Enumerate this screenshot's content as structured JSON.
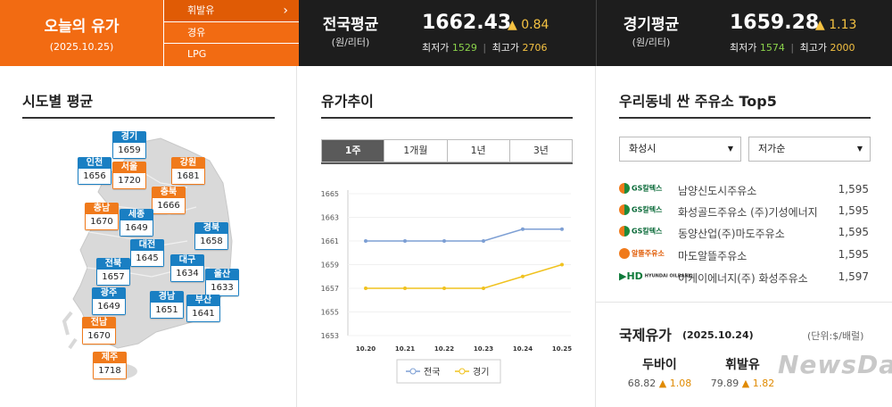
{
  "header": {
    "today": {
      "title": "오늘의 유가",
      "date": "(2025.10.25)"
    },
    "fuel_menu": [
      {
        "label": "휘발유",
        "active": true
      },
      {
        "label": "경유",
        "active": false
      },
      {
        "label": "LPG",
        "active": false
      }
    ],
    "national": {
      "name": "전국평균",
      "unit": "(원/리터)",
      "price": "1662.43",
      "delta": "▲ 0.84",
      "min_label": "최저가",
      "min": "1529",
      "max_label": "최고가",
      "max": "2706"
    },
    "gyeonggi": {
      "name": "경기평균",
      "unit": "(원/리터)",
      "price": "1659.28",
      "delta": "▲ 1.13",
      "min_label": "최저가",
      "min": "1574",
      "max_label": "최고가",
      "max": "2000"
    }
  },
  "regions_section": {
    "title": "시도별 평균",
    "regions": [
      {
        "name": "경기",
        "value": "1659",
        "color": "blue"
      },
      {
        "name": "인천",
        "value": "1656",
        "color": "blue"
      },
      {
        "name": "서울",
        "value": "1720",
        "color": "orange"
      },
      {
        "name": "강원",
        "value": "1681",
        "color": "orange"
      },
      {
        "name": "충북",
        "value": "1666",
        "color": "orange"
      },
      {
        "name": "충남",
        "value": "1670",
        "color": "orange"
      },
      {
        "name": "세종",
        "value": "1649",
        "color": "blue"
      },
      {
        "name": "경북",
        "value": "1658",
        "color": "blue"
      },
      {
        "name": "대전",
        "value": "1645",
        "color": "blue"
      },
      {
        "name": "전북",
        "value": "1657",
        "color": "blue"
      },
      {
        "name": "대구",
        "value": "1634",
        "color": "blue"
      },
      {
        "name": "울산",
        "value": "1633",
        "color": "blue"
      },
      {
        "name": "광주",
        "value": "1649",
        "color": "blue"
      },
      {
        "name": "경남",
        "value": "1651",
        "color": "blue"
      },
      {
        "name": "부산",
        "value": "1641",
        "color": "blue"
      },
      {
        "name": "전남",
        "value": "1670",
        "color": "orange"
      },
      {
        "name": "제주",
        "value": "1718",
        "color": "orange"
      }
    ]
  },
  "trend_section": {
    "title": "유가추이",
    "tabs": [
      {
        "label": "1주",
        "active": true
      },
      {
        "label": "1개월",
        "active": false
      },
      {
        "label": "1년",
        "active": false
      },
      {
        "label": "3년",
        "active": false
      }
    ]
  },
  "chart_data": {
    "type": "line",
    "x": [
      "10.20",
      "10.21",
      "10.22",
      "10.23",
      "10.24",
      "10.25"
    ],
    "series": [
      {
        "name": "전국",
        "values": [
          1661,
          1661,
          1661,
          1661,
          1662,
          1662
        ],
        "color": "#7d9fd4"
      },
      {
        "name": "경기",
        "values": [
          1657,
          1657,
          1657,
          1657,
          1658,
          1659
        ],
        "color": "#f0c21f"
      }
    ],
    "yticks": [
      "1665",
      "1663",
      "1661",
      "1659",
      "1657",
      "1655",
      "1653"
    ],
    "ylim": [
      1653,
      1665
    ],
    "legend": "bottom",
    "grid": true
  },
  "stations_section": {
    "title": "우리동네 싼 주유소 Top5",
    "region_select": "화성시",
    "sort_select": "저가순",
    "stations": [
      {
        "brand": "gs",
        "brand_text": "GS칼텍스",
        "name": "남양신도시주유소",
        "price": "1,595"
      },
      {
        "brand": "gs",
        "brand_text": "GS칼텍스",
        "name": "화성골드주유소 (주)기성에너지",
        "price": "1,595"
      },
      {
        "brand": "gs",
        "brand_text": "GS칼텍스",
        "name": "동양산업(주)마도주유소",
        "price": "1,595"
      },
      {
        "brand": "alt",
        "brand_text": "알뜰주유소",
        "name": "마도알뜰주유소",
        "price": "1,595"
      },
      {
        "brand": "hd",
        "brand_text": "HYUNDAI OILBANK",
        "name": "이케이에너지(주) 화성주유소",
        "price": "1,597"
      }
    ]
  },
  "intl_section": {
    "title": "국제유가",
    "date": "(2025.10.24)",
    "unit": "(단위:$/배럴)",
    "oils": [
      {
        "name": "두바이",
        "value": "68.82",
        "delta": "▲ 1.08"
      },
      {
        "name": "휘발유",
        "value": "79.89",
        "delta": "▲ 1.82"
      }
    ]
  },
  "watermark": "NewsDa"
}
